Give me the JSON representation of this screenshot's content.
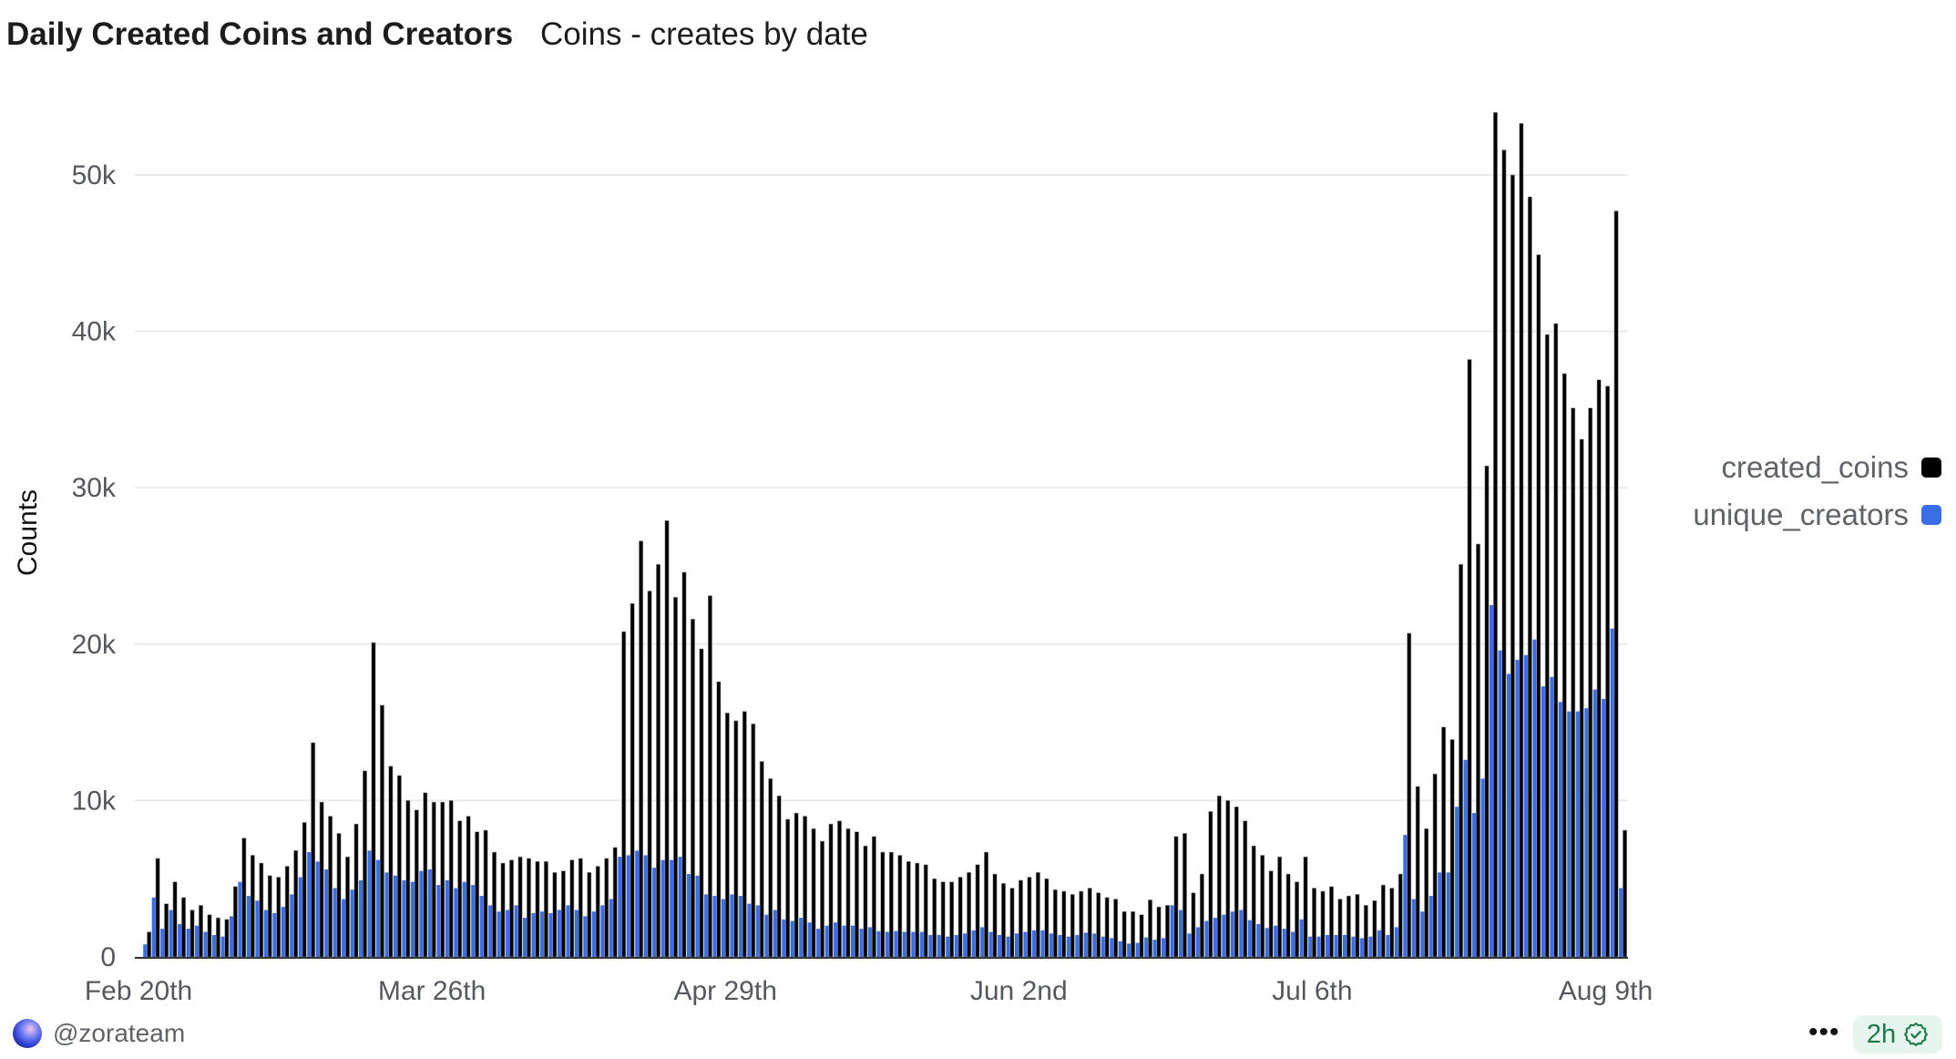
{
  "header": {
    "title": "Daily Created Coins and Creators",
    "subtitle": "Coins - creates by date"
  },
  "footer": {
    "username": "@zorateam",
    "more_label": "•••",
    "freshness": "2h",
    "freshness_icon": "verified-badge-icon"
  },
  "colors": {
    "created_coins": "#000000",
    "unique_creators": "#3a6ee8",
    "grid": "#e9eaec",
    "badge_bg": "#e6f6ee",
    "badge_text": "#1b7a46"
  },
  "chart_data": {
    "type": "bar",
    "title": "Daily Created Coins and Creators",
    "xlabel": "",
    "ylabel": "Counts",
    "x_start": "Feb 21",
    "x_interval": "1 day",
    "x_ticks": [
      "Feb 20th",
      "Mar 26th",
      "Apr 29th",
      "Jun 2nd",
      "Jul 6th",
      "Aug 9th"
    ],
    "x_tick_day_offsets": [
      -1,
      33,
      67,
      101,
      135,
      169
    ],
    "y_ticks": [
      0,
      10000,
      20000,
      30000,
      40000,
      50000
    ],
    "y_tick_labels": [
      "0",
      "10k",
      "20k",
      "30k",
      "40k",
      "50k"
    ],
    "ylim": [
      0,
      55000
    ],
    "grid": true,
    "legend_position": "right",
    "value_scale": 1000,
    "series": [
      {
        "name": "created_coins",
        "values": [
          1.6,
          6.3,
          3.4,
          4.8,
          3.8,
          3.0,
          3.3,
          2.7,
          2.5,
          2.4,
          4.5,
          7.6,
          6.5,
          6.0,
          5.2,
          5.1,
          5.8,
          6.8,
          8.6,
          13.7,
          9.9,
          9.0,
          7.9,
          6.4,
          8.5,
          11.9,
          20.1,
          16.1,
          12.2,
          11.6,
          10.0,
          9.4,
          10.5,
          9.9,
          9.9,
          10.0,
          8.7,
          9.0,
          8.0,
          8.1,
          6.7,
          6.0,
          6.2,
          6.4,
          6.3,
          6.1,
          6.1,
          5.4,
          5.5,
          6.2,
          6.3,
          5.4,
          5.8,
          6.3,
          7.0,
          20.8,
          22.6,
          26.6,
          23.4,
          25.1,
          27.9,
          23.0,
          24.6,
          21.6,
          19.7,
          23.1,
          17.6,
          15.6,
          15.1,
          15.7,
          14.9,
          12.5,
          11.4,
          10.3,
          8.8,
          9.2,
          9.0,
          8.2,
          7.4,
          8.5,
          8.7,
          8.2,
          8.0,
          7.1,
          7.7,
          6.7,
          6.7,
          6.5,
          6.1,
          6.0,
          5.9,
          5.0,
          4.8,
          4.8,
          5.1,
          5.4,
          5.9,
          6.7,
          5.3,
          4.7,
          4.4,
          4.9,
          5.1,
          5.4,
          5.0,
          4.3,
          4.2,
          4.0,
          4.2,
          4.4,
          4.1,
          3.8,
          3.7,
          2.9,
          2.9,
          2.7,
          3.65,
          3.2,
          3.3,
          7.7,
          7.9,
          4.1,
          5.3,
          9.3,
          10.3,
          10.0,
          9.6,
          8.7,
          7.1,
          6.5,
          5.5,
          6.4,
          5.3,
          4.8,
          6.4,
          4.4,
          4.2,
          4.5,
          3.7,
          3.9,
          4.0,
          3.3,
          3.6,
          4.6,
          4.4,
          5.3,
          20.7,
          10.9,
          8.2,
          11.7,
          14.7,
          13.9,
          25.1,
          38.2,
          26.4,
          31.4,
          54.0,
          51.6,
          50.0,
          53.3,
          48.6,
          44.9,
          39.8,
          40.5,
          37.3,
          35.1,
          33.1,
          35.1,
          36.9,
          36.5,
          47.7,
          8.1
        ]
      },
      {
        "name": "unique_creators",
        "values": [
          0.8,
          3.8,
          1.8,
          3.0,
          2.1,
          1.8,
          2.0,
          1.6,
          1.4,
          1.3,
          2.6,
          4.8,
          3.9,
          3.6,
          3.0,
          2.8,
          3.2,
          4.0,
          5.1,
          6.7,
          6.1,
          5.6,
          4.4,
          3.7,
          4.3,
          4.9,
          6.8,
          6.2,
          5.4,
          5.2,
          4.9,
          4.8,
          5.5,
          5.6,
          4.6,
          4.9,
          4.4,
          4.8,
          4.6,
          3.9,
          3.3,
          2.9,
          3.0,
          3.3,
          2.5,
          2.8,
          2.9,
          2.8,
          3.0,
          3.3,
          3.0,
          2.6,
          2.9,
          3.3,
          3.7,
          6.4,
          6.5,
          6.8,
          6.5,
          5.7,
          6.2,
          6.2,
          6.4,
          5.3,
          5.2,
          4.0,
          3.9,
          3.7,
          4.0,
          3.9,
          3.4,
          3.3,
          2.7,
          3.0,
          2.4,
          2.3,
          2.5,
          2.2,
          1.8,
          2.0,
          2.2,
          2.0,
          2.0,
          1.8,
          1.9,
          1.65,
          1.6,
          1.65,
          1.6,
          1.6,
          1.6,
          1.4,
          1.4,
          1.3,
          1.4,
          1.5,
          1.7,
          1.9,
          1.6,
          1.4,
          1.3,
          1.5,
          1.6,
          1.7,
          1.7,
          1.5,
          1.4,
          1.3,
          1.4,
          1.55,
          1.5,
          1.3,
          1.2,
          1.0,
          0.85,
          0.9,
          1.25,
          1.1,
          1.2,
          3.3,
          3.0,
          1.5,
          1.9,
          2.3,
          2.5,
          2.7,
          2.9,
          3.0,
          2.35,
          2.1,
          1.85,
          2.0,
          1.8,
          1.6,
          2.4,
          1.3,
          1.3,
          1.4,
          1.4,
          1.4,
          1.3,
          1.2,
          1.3,
          1.7,
          1.4,
          1.9,
          7.8,
          3.7,
          2.9,
          3.9,
          5.4,
          5.4,
          9.6,
          12.6,
          9.2,
          11.4,
          22.5,
          19.6,
          18.1,
          19.0,
          19.3,
          20.3,
          17.3,
          17.9,
          16.3,
          15.7,
          15.7,
          15.9,
          17.1,
          16.5,
          21.0,
          4.4
        ]
      }
    ]
  }
}
